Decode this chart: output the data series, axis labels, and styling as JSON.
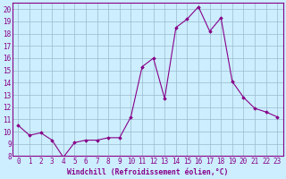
{
  "x": [
    0,
    1,
    2,
    3,
    4,
    5,
    6,
    7,
    8,
    9,
    10,
    11,
    12,
    13,
    14,
    15,
    16,
    17,
    18,
    19,
    20,
    21,
    22,
    23
  ],
  "y": [
    10.5,
    9.7,
    9.9,
    9.3,
    7.9,
    9.1,
    9.3,
    9.3,
    9.5,
    9.5,
    11.2,
    15.3,
    16.0,
    12.7,
    18.5,
    19.2,
    20.2,
    18.2,
    19.3,
    14.1,
    12.8,
    11.9,
    11.6,
    11.2
  ],
  "xlim": [
    -0.5,
    23.5
  ],
  "ylim": [
    8,
    20.5
  ],
  "yticks": [
    8,
    9,
    10,
    11,
    12,
    13,
    14,
    15,
    16,
    17,
    18,
    19,
    20
  ],
  "xticks": [
    0,
    1,
    2,
    3,
    4,
    5,
    6,
    7,
    8,
    9,
    10,
    11,
    12,
    13,
    14,
    15,
    16,
    17,
    18,
    19,
    20,
    21,
    22,
    23
  ],
  "line_color": "#880088",
  "marker": "D",
  "marker_size": 1.8,
  "linewidth": 0.8,
  "xlabel": "Windchill (Refroidissement éolien,°C)",
  "xlabel_fontsize": 5.8,
  "tick_fontsize": 5.5,
  "background_color": "#cceeff",
  "grid_color": "#99bbcc",
  "spine_color": "#880088"
}
